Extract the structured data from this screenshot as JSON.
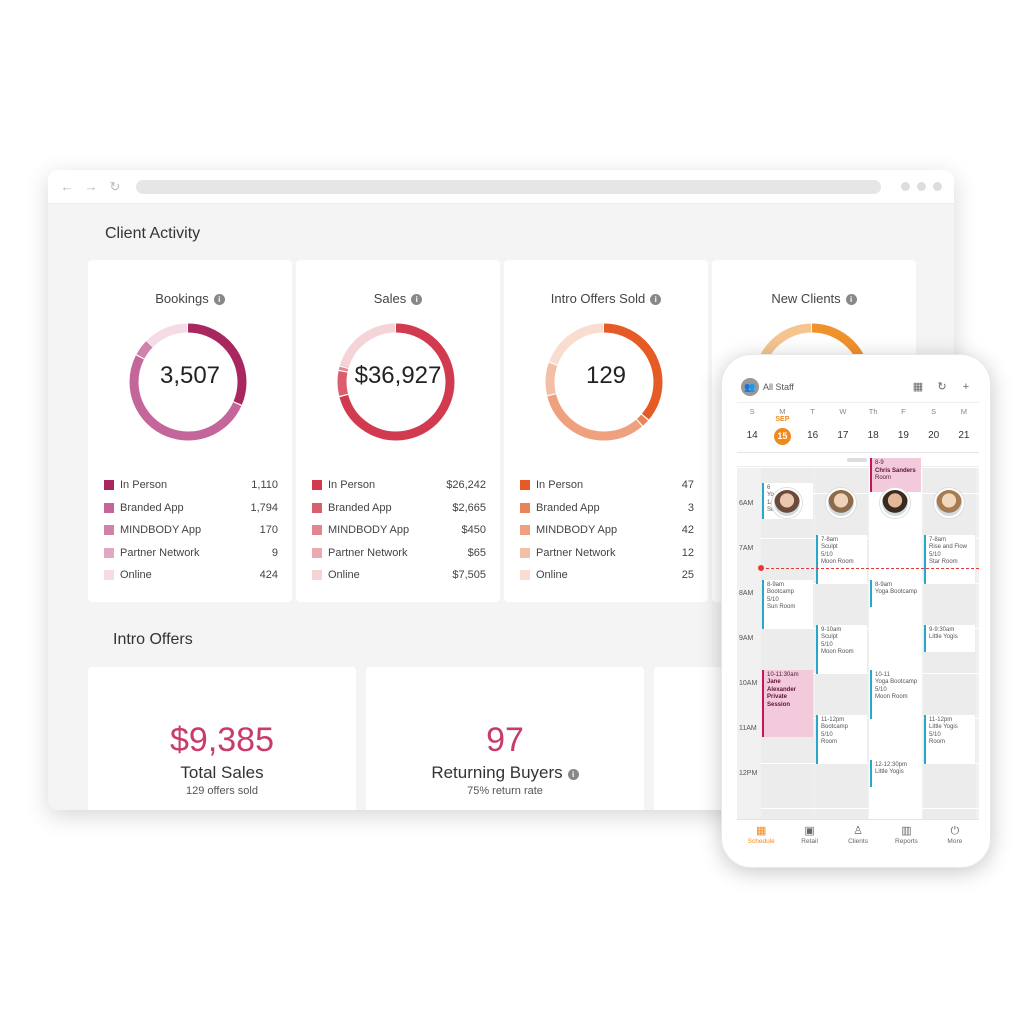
{
  "client_activity": {
    "title": "Client Activity",
    "cards": [
      {
        "title": "Bookings",
        "value": "3,507",
        "colors": [
          "#a8275f",
          "#c5669a",
          "#cf82aa",
          "#e0a8c4",
          "#f5dbe6"
        ],
        "fractions": [
          0.317,
          0.511,
          0.048,
          0.003,
          0.121
        ],
        "rows": [
          {
            "label": "In Person",
            "value": "1,110"
          },
          {
            "label": "Branded App",
            "value": "1,794"
          },
          {
            "label": "MINDBODY App",
            "value": "170"
          },
          {
            "label": "Partner Network",
            "value": "9"
          },
          {
            "label": "Online",
            "value": "424"
          }
        ]
      },
      {
        "title": "Sales",
        "value": "$36,927",
        "colors": [
          "#d23a4f",
          "#db5e6f",
          "#e38590",
          "#ebaab2",
          "#f5d4d8"
        ],
        "fractions": [
          0.711,
          0.072,
          0.012,
          0.002,
          0.203
        ],
        "rows": [
          {
            "label": "In Person",
            "value": "$26,242"
          },
          {
            "label": "Branded App",
            "value": "$2,665"
          },
          {
            "label": "MINDBODY App",
            "value": "$450"
          },
          {
            "label": "Partner Network",
            "value": "$65"
          },
          {
            "label": "Online",
            "value": "$7,505"
          }
        ]
      },
      {
        "title": "Intro Offers Sold",
        "value": "129",
        "colors": [
          "#e55a25",
          "#e9845a",
          "#eea07f",
          "#f3bfa6",
          "#f9ddd0"
        ],
        "fractions": [
          0.364,
          0.023,
          0.326,
          0.093,
          0.194
        ],
        "rows": [
          {
            "label": "In Person",
            "value": "47"
          },
          {
            "label": "Branded App",
            "value": "3"
          },
          {
            "label": "MINDBODY App",
            "value": "42"
          },
          {
            "label": "Partner Network",
            "value": "12"
          },
          {
            "label": "Online",
            "value": "25"
          }
        ]
      },
      {
        "title": "New Clients",
        "value": "",
        "colors": [
          "#f0912c",
          "#f6c48e"
        ],
        "fractions": [
          0.5,
          0.5
        ],
        "rows": []
      }
    ]
  },
  "intro_offers": {
    "title": "Intro Offers",
    "cards": [
      {
        "number": "$9,385",
        "label": "Total Sales",
        "sub": "129 offers sold"
      },
      {
        "number": "97",
        "label": "Returning Buyers",
        "sub": "75% return rate"
      }
    ]
  },
  "phone": {
    "staff_label": "All Staff",
    "month": "SEP",
    "days": [
      {
        "l": "S",
        "n": "14"
      },
      {
        "l": "M",
        "n": "15",
        "sel": true
      },
      {
        "l": "T",
        "n": "16"
      },
      {
        "l": "W",
        "n": "17"
      },
      {
        "l": "Th",
        "n": "18"
      },
      {
        "l": "F",
        "n": "19"
      },
      {
        "l": "S",
        "n": "20"
      },
      {
        "l": "M",
        "n": "21"
      }
    ],
    "hours": [
      "6AM",
      "7AM",
      "8AM",
      "9AM",
      "10AM",
      "11AM",
      "12PM"
    ],
    "events": [
      {
        "col": 2,
        "start": 0,
        "end": 0.75,
        "style": "pink",
        "lines": [
          "8-9",
          "Chris Sanders",
          "Room"
        ],
        "bold": [
          1
        ]
      },
      {
        "col": 0,
        "start": 0.55,
        "end": 1.35,
        "style": "white",
        "lines": [
          "6",
          "Yo",
          "1/10",
          "Sun Room"
        ]
      },
      {
        "col": 1,
        "start": 1.7,
        "end": 2.8,
        "style": "white",
        "lines": [
          "7-8am",
          "Sculpt",
          "5/10",
          "Moon Room"
        ]
      },
      {
        "col": 3,
        "start": 1.7,
        "end": 2.8,
        "style": "white",
        "lines": [
          "7-8am",
          "Rise and Flow",
          "5/10",
          "Star Room"
        ]
      },
      {
        "col": 0,
        "start": 2.7,
        "end": 3.8,
        "style": "white",
        "lines": [
          "8-9am",
          "Bootcamp",
          "5/10",
          "Sun Room"
        ]
      },
      {
        "col": 2,
        "start": 2.7,
        "end": 3.3,
        "style": "white",
        "lines": [
          "8-9am",
          "Yoga Bootcamp"
        ]
      },
      {
        "col": 1,
        "start": 3.7,
        "end": 4.8,
        "style": "white",
        "lines": [
          "9-10am",
          "Sculpt",
          "5/10",
          "Moon Room"
        ]
      },
      {
        "col": 3,
        "start": 3.7,
        "end": 4.3,
        "style": "white",
        "lines": [
          "9-9:30am",
          "Little Yogis"
        ]
      },
      {
        "col": 0,
        "start": 4.7,
        "end": 6.2,
        "style": "pink",
        "lines": [
          "10-11:30am",
          "Jane Alexander",
          "Private Session"
        ],
        "bold": [
          1,
          2
        ]
      },
      {
        "col": 2,
        "start": 4.7,
        "end": 5.8,
        "style": "white",
        "lines": [
          "10-11",
          "Yoga Bootcamp",
          "5/10",
          "Moon Room"
        ]
      },
      {
        "col": 1,
        "start": 5.7,
        "end": 6.8,
        "style": "white",
        "lines": [
          "11-12pm",
          "Bootcamp",
          "5/10",
          "Room"
        ]
      },
      {
        "col": 3,
        "start": 5.7,
        "end": 6.8,
        "style": "white",
        "lines": [
          "11-12pm",
          "Little Yogis",
          "5/10",
          "Room"
        ]
      },
      {
        "col": 2,
        "start": 6.7,
        "end": 7.3,
        "style": "white",
        "lines": [
          "12-12:30pm",
          "Little Yogis"
        ]
      }
    ],
    "tabs": [
      {
        "label": "Schedule",
        "icon": "▦",
        "active": true
      },
      {
        "label": "Retail",
        "icon": "▣"
      },
      {
        "label": "Clients",
        "icon": "♙"
      },
      {
        "label": "Reports",
        "icon": "▥"
      },
      {
        "label": "More",
        "icon": "⏻"
      }
    ]
  }
}
